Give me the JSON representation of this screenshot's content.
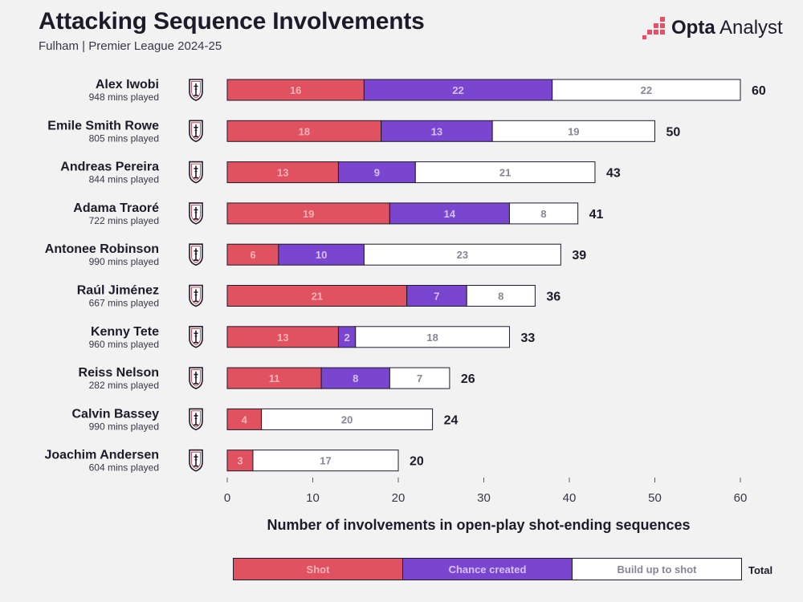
{
  "title": "Attacking Sequence Involvements",
  "subtitle": "Fulham | Premier League 2024-25",
  "brand": {
    "bold": "Opta",
    "rest": "Analyst",
    "color": "#e94f64"
  },
  "colors": {
    "shot": "#e0525f",
    "chance": "#7a45cf",
    "build": "#ffffff",
    "shot_text": "#f4b3bb",
    "chance_text": "#d5c3f3",
    "build_text": "#8a8596",
    "outline": "#1d1a2a",
    "crest": "#1d1a2a"
  },
  "legend": {
    "shot": "Shot",
    "chance": "Chance created",
    "build": "Build up to shot",
    "total": "Total"
  },
  "chart_data": {
    "type": "bar",
    "orientation": "horizontal",
    "stacked": true,
    "title": "Attacking Sequence Involvements",
    "xlabel": "Number of involvements in open-play shot-ending sequences",
    "xlim": [
      0,
      60
    ],
    "xticks": [
      0,
      10,
      20,
      30,
      40,
      50,
      60
    ],
    "players": [
      {
        "name": "Alex Iwobi",
        "mins": "948 mins played",
        "shot": 16,
        "chance": 22,
        "build": 22,
        "total": 60
      },
      {
        "name": "Emile Smith Rowe",
        "mins": "805 mins played",
        "shot": 18,
        "chance": 13,
        "build": 19,
        "total": 50
      },
      {
        "name": "Andreas Pereira",
        "mins": "844 mins played",
        "shot": 13,
        "chance": 9,
        "build": 21,
        "total": 43
      },
      {
        "name": "Adama Traoré",
        "mins": "722 mins played",
        "shot": 19,
        "chance": 14,
        "build": 8,
        "total": 41
      },
      {
        "name": "Antonee Robinson",
        "mins": "990 mins played",
        "shot": 6,
        "chance": 10,
        "build": 23,
        "total": 39
      },
      {
        "name": "Raúl Jiménez",
        "mins": "667 mins played",
        "shot": 21,
        "chance": 7,
        "build": 8,
        "total": 36
      },
      {
        "name": "Kenny Tete",
        "mins": "960 mins played",
        "shot": 13,
        "chance": 2,
        "build": 18,
        "total": 33
      },
      {
        "name": "Reiss Nelson",
        "mins": "282 mins played",
        "shot": 11,
        "chance": 8,
        "build": 7,
        "total": 26
      },
      {
        "name": "Calvin Bassey",
        "mins": "990 mins played",
        "shot": 4,
        "chance": 0,
        "build": 20,
        "total": 24
      },
      {
        "name": "Joachim Andersen",
        "mins": "604 mins played",
        "shot": 3,
        "chance": 0,
        "build": 17,
        "total": 20
      }
    ]
  }
}
